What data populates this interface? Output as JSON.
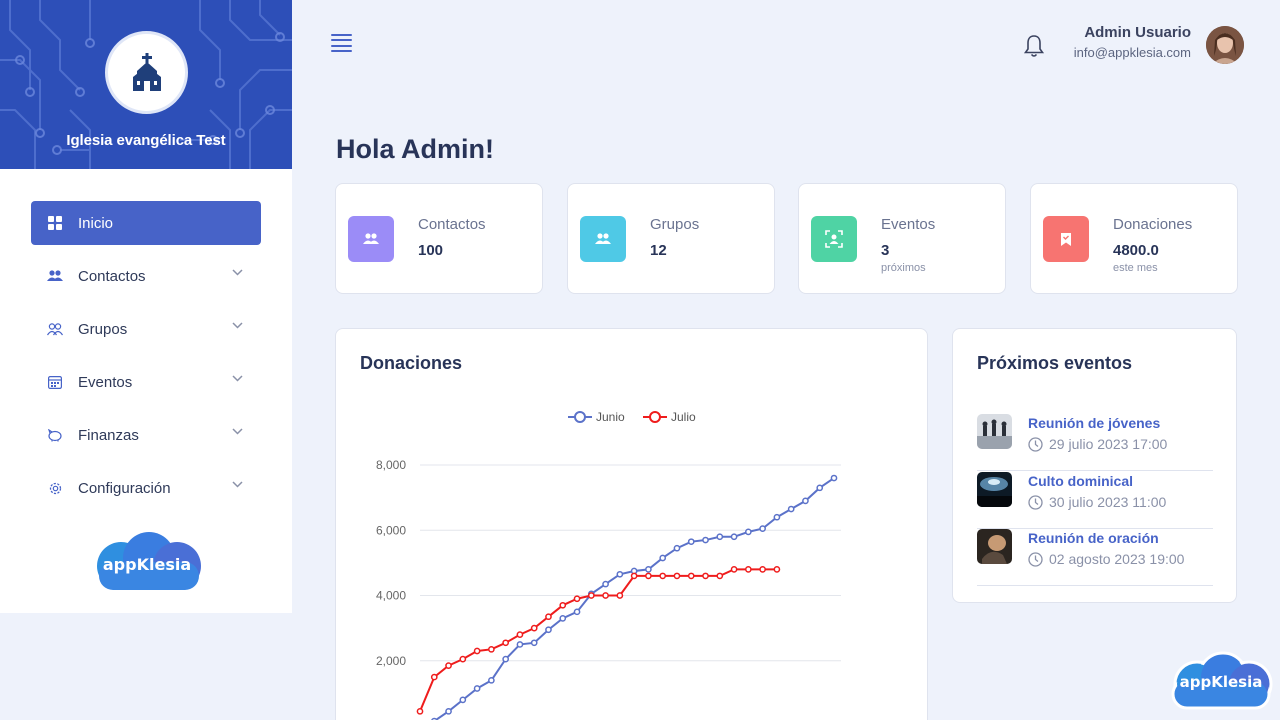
{
  "sidebar": {
    "church_name": "Iglesia evangélica Test",
    "menu": [
      {
        "label": "Inicio",
        "icon": "dashboard-icon",
        "active": true
      },
      {
        "label": "Contactos",
        "icon": "users-icon"
      },
      {
        "label": "Grupos",
        "icon": "group-icon"
      },
      {
        "label": "Eventos",
        "icon": "calendar-icon"
      },
      {
        "label": "Finanzas",
        "icon": "piggy-bank-icon"
      },
      {
        "label": "Configuración",
        "icon": "gear-icon"
      }
    ],
    "brand": "appKlesia"
  },
  "header": {
    "user_name": "Admin Usuario",
    "user_email": "info@appklesia.com"
  },
  "main": {
    "greeting": "Hola Admin!",
    "stats": [
      {
        "label": "Contactos",
        "value": "100",
        "sub": "",
        "color": "#9b8cf7"
      },
      {
        "label": "Grupos",
        "value": "12",
        "sub": "",
        "color": "#4fc9e6"
      },
      {
        "label": "Eventos",
        "value": "3",
        "sub": "próximos",
        "color": "#4fd3a4"
      },
      {
        "label": "Donaciones",
        "value": "4800.0",
        "sub": "este mes",
        "color": "#f77471"
      }
    ],
    "donations_title": "Donaciones",
    "events_title": "Próximos eventos",
    "events": [
      {
        "title": "Reunión de jóvenes",
        "date": "29 julio 2023 17:00"
      },
      {
        "title": "Culto dominical",
        "date": "30 julio 2023 11:00"
      },
      {
        "title": "Reunión de oración",
        "date": "02 agosto 2023 19:00"
      }
    ]
  },
  "float_brand": "appKlesia",
  "chart_data": {
    "type": "line",
    "ylim": [
      0,
      8000
    ],
    "yticks": [
      "2,000",
      "4,000",
      "6,000",
      "8,000"
    ],
    "legend": "top",
    "series": [
      {
        "name": "Junio",
        "color": "#5b72c9",
        "values": [
          0,
          150,
          450,
          800,
          1150,
          1400,
          2050,
          2500,
          2550,
          2950,
          3300,
          3500,
          4050,
          4350,
          4650,
          4750,
          4800,
          5150,
          5450,
          5650,
          5700,
          5800,
          5800,
          5950,
          6050,
          6400,
          6650,
          6900,
          7300,
          7600
        ]
      },
      {
        "name": "Julio",
        "color": "#ef1c1c",
        "values": [
          450,
          1500,
          1850,
          2050,
          2300,
          2350,
          2550,
          2800,
          3000,
          3350,
          3700,
          3900,
          4000,
          4000,
          4000,
          4600,
          4600,
          4600,
          4600,
          4600,
          4600,
          4600,
          4800,
          4800,
          4800,
          4800
        ]
      }
    ]
  }
}
